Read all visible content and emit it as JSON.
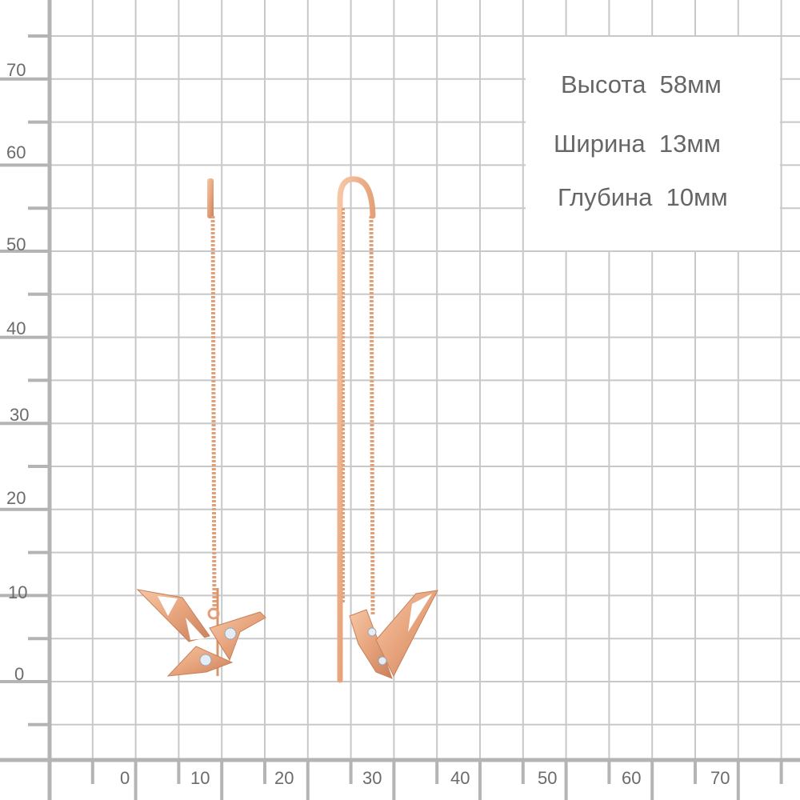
{
  "ruler": {
    "y_labels": [
      "70",
      "60",
      "50",
      "40",
      "30",
      "20",
      "10",
      "0"
    ],
    "x_labels": [
      "0",
      "10",
      "20",
      "30",
      "40",
      "50",
      "60",
      "70"
    ],
    "unit": "мм"
  },
  "dimensions": {
    "height": "Высота  58мм",
    "width": "Ширина  13мм",
    "depth": "Глубина  10мм"
  },
  "colors": {
    "grid": "#c8c8c8",
    "axis": "#b4b4b4",
    "metal": "#e7a47c",
    "label": "#6b6b6b"
  },
  "product": {
    "icon": "origami-crane-threader-earrings-icon"
  }
}
